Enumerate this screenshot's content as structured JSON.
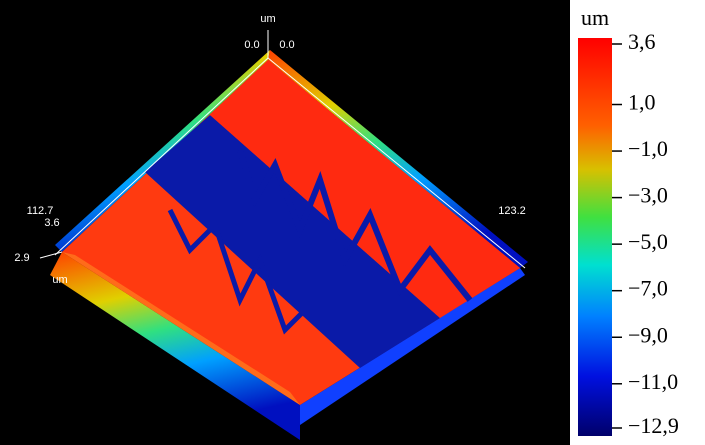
{
  "plot": {
    "axis_unit_top": "um",
    "top_left_label": "0.0",
    "top_right_label": "0.0",
    "left_label_1": "112.7",
    "left_label_2": "3.6",
    "right_label": "123.2",
    "z_label": "2.9",
    "axis_unit_left": "um"
  },
  "colorbar": {
    "title": "um",
    "lim": [
      -12.9,
      3.6
    ],
    "ticks": [
      {
        "value": 3.6,
        "label": "3,6"
      },
      {
        "value": 1.0,
        "label": "1,0"
      },
      {
        "value": -1.0,
        "label": "−1,0"
      },
      {
        "value": -3.0,
        "label": "−3,0"
      },
      {
        "value": -5.0,
        "label": "−5,0"
      },
      {
        "value": -7.0,
        "label": "−7,0"
      },
      {
        "value": -9.0,
        "label": "−9,0"
      },
      {
        "value": -11.0,
        "label": "−11,0"
      },
      {
        "value": -12.9,
        "label": "−12,9"
      }
    ]
  }
}
